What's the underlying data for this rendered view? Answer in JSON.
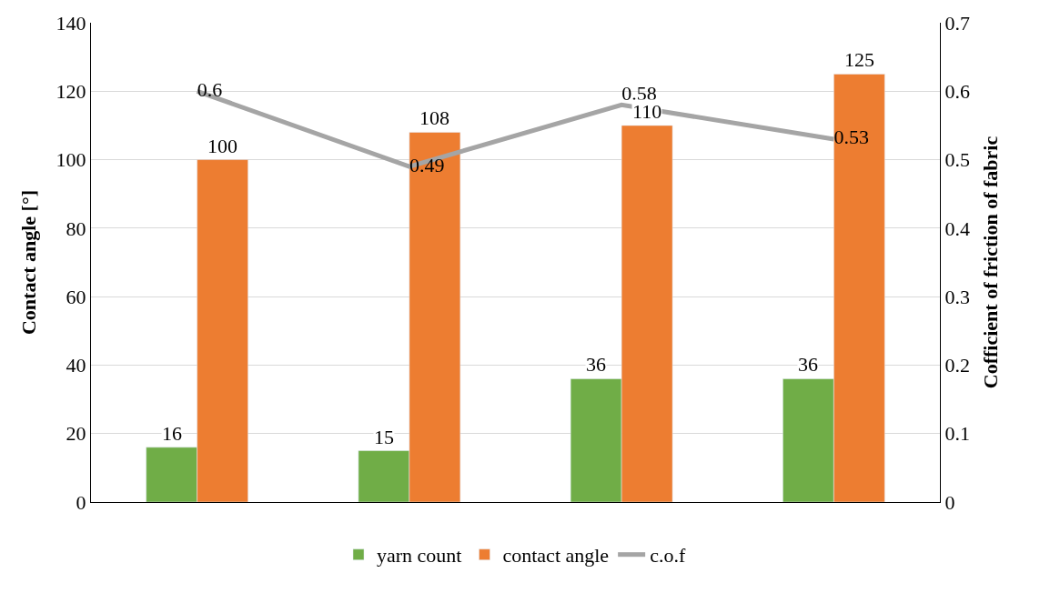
{
  "chart_data": {
    "type": "bar",
    "categories": [
      null,
      null,
      null,
      null
    ],
    "ylabel": "Contact angle [°]",
    "y2label": "Cofficient of friction of fabric",
    "series": [
      {
        "name": "yarn count",
        "color": "#70ad47",
        "values": [
          16,
          15,
          36,
          36
        ]
      },
      {
        "name": "contact angle",
        "color": "#ed7d31",
        "values": [
          100,
          108,
          110,
          125
        ]
      },
      {
        "name": "c.o.f",
        "type": "line",
        "axis": "y2",
        "color": "#a5a5a5",
        "values": [
          0.6,
          0.49,
          0.58,
          0.53
        ]
      }
    ],
    "ylim": [
      0,
      140
    ],
    "yticks": [
      0,
      20,
      40,
      60,
      80,
      100,
      120,
      140
    ],
    "y2lim": [
      0,
      0.7
    ],
    "y2ticks": [
      0,
      0.1,
      0.2,
      0.3,
      0.4,
      0.5,
      0.6,
      0.7
    ],
    "data_labels": true,
    "grid": "y",
    "legend": "bottom",
    "marker": "none",
    "line_style": "solid"
  }
}
